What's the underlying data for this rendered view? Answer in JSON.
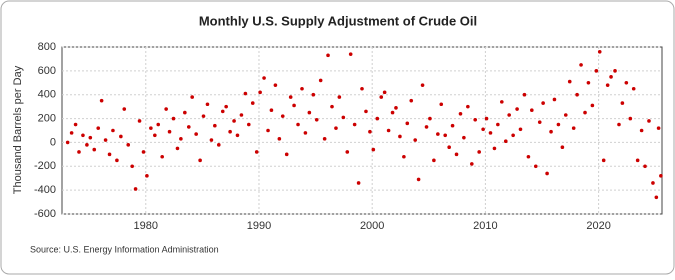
{
  "chart_data": {
    "type": "scatter",
    "title": "Monthly U.S. Supply Adjustment of Crude Oil",
    "y_label": "Thousand Barrels per Day",
    "source": "Source: U.S. Energy Information Administration",
    "color": "#cc0000",
    "xlim": [
      1972.6,
      2025.6
    ],
    "xticks": [
      1980,
      1990,
      2000,
      2010,
      2020
    ],
    "ylim": [
      -600,
      800
    ],
    "yticks": [
      -600,
      -400,
      -200,
      0,
      200,
      400,
      600,
      800
    ],
    "grid": true,
    "x": [
      1973.1,
      1973.45,
      1973.8,
      1974.1,
      1974.45,
      1974.8,
      1975.1,
      1975.45,
      1975.8,
      1976.1,
      1976.45,
      1976.8,
      1977.1,
      1977.45,
      1977.8,
      1978.1,
      1978.45,
      1978.8,
      1979.1,
      1979.45,
      1979.8,
      1980.1,
      1980.45,
      1980.8,
      1981.1,
      1981.45,
      1981.8,
      1982.1,
      1982.45,
      1982.8,
      1983.1,
      1983.45,
      1983.8,
      1984.1,
      1984.45,
      1984.8,
      1985.1,
      1985.45,
      1985.8,
      1986.1,
      1986.45,
      1986.8,
      1987.1,
      1987.45,
      1987.8,
      1988.1,
      1988.45,
      1988.8,
      1989.1,
      1989.45,
      1989.8,
      1990.1,
      1990.45,
      1990.8,
      1991.1,
      1991.45,
      1991.8,
      1992.1,
      1992.45,
      1992.8,
      1993.1,
      1993.45,
      1993.8,
      1994.1,
      1994.45,
      1994.8,
      1995.1,
      1995.45,
      1995.8,
      1996.1,
      1996.45,
      1996.8,
      1997.1,
      1997.45,
      1997.8,
      1998.1,
      1998.45,
      1998.8,
      1999.1,
      1999.45,
      1999.8,
      2000.1,
      2000.45,
      2000.8,
      2001.1,
      2001.45,
      2001.8,
      2002.1,
      2002.45,
      2002.8,
      2003.1,
      2003.45,
      2003.8,
      2004.1,
      2004.45,
      2004.8,
      2005.1,
      2005.45,
      2005.8,
      2006.1,
      2006.45,
      2006.8,
      2007.1,
      2007.45,
      2007.8,
      2008.1,
      2008.45,
      2008.8,
      2009.1,
      2009.45,
      2009.8,
      2010.1,
      2010.45,
      2010.8,
      2011.1,
      2011.45,
      2011.8,
      2012.1,
      2012.45,
      2012.8,
      2013.1,
      2013.45,
      2013.8,
      2014.1,
      2014.45,
      2014.8,
      2015.1,
      2015.45,
      2015.8,
      2016.1,
      2016.45,
      2016.8,
      2017.1,
      2017.45,
      2017.8,
      2018.1,
      2018.45,
      2018.8,
      2019.1,
      2019.45,
      2019.8,
      2020.1,
      2020.45,
      2020.8,
      2021.1,
      2021.45,
      2021.8,
      2022.1,
      2022.45,
      2022.8,
      2023.1,
      2023.45,
      2023.8,
      2024.1,
      2024.45,
      2024.8,
      2025.1,
      2025.3,
      2025.5
    ],
    "values": [
      0,
      80,
      150,
      -80,
      60,
      -20,
      40,
      -60,
      120,
      350,
      20,
      -100,
      100,
      -150,
      50,
      280,
      -20,
      -200,
      -390,
      180,
      -80,
      -280,
      120,
      60,
      150,
      -120,
      280,
      90,
      200,
      -50,
      30,
      250,
      130,
      380,
      70,
      -150,
      220,
      320,
      20,
      140,
      -20,
      260,
      300,
      90,
      180,
      60,
      230,
      410,
      150,
      330,
      -80,
      420,
      540,
      100,
      270,
      480,
      30,
      220,
      -100,
      380,
      310,
      150,
      450,
      80,
      250,
      400,
      190,
      520,
      30,
      730,
      300,
      120,
      380,
      210,
      -80,
      740,
      150,
      -340,
      450,
      260,
      90,
      -60,
      200,
      380,
      420,
      100,
      250,
      290,
      50,
      -120,
      160,
      350,
      20,
      -310,
      480,
      130,
      200,
      -150,
      70,
      320,
      60,
      -40,
      140,
      -100,
      240,
      40,
      300,
      -180,
      190,
      -80,
      110,
      200,
      80,
      -50,
      150,
      340,
      10,
      230,
      60,
      280,
      110,
      400,
      -120,
      270,
      -200,
      170,
      330,
      -260,
      90,
      360,
      150,
      -40,
      230,
      510,
      120,
      400,
      650,
      250,
      500,
      310,
      600,
      760,
      -150,
      480,
      550,
      600,
      150,
      330,
      500,
      200,
      450,
      -150,
      100,
      -200,
      180,
      -340,
      -460,
      120,
      -280
    ]
  }
}
